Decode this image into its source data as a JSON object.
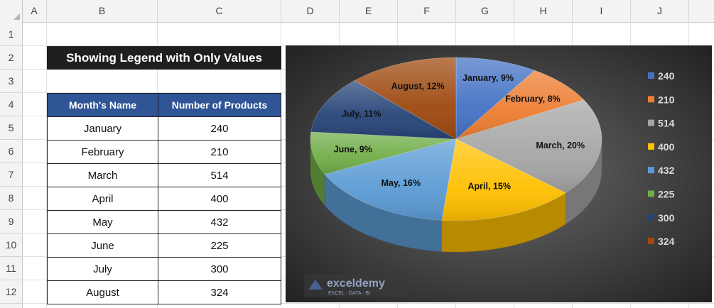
{
  "columns": [
    "A",
    "B",
    "C",
    "D",
    "E",
    "F",
    "G",
    "H",
    "I",
    "J"
  ],
  "rows": [
    "1",
    "2",
    "3",
    "4",
    "5",
    "6",
    "7",
    "8",
    "9",
    "10",
    "11",
    "12"
  ],
  "title": "Showing Legend with Only Values",
  "table": {
    "headers": [
      "Month's Name",
      "Number of Products"
    ],
    "rows": [
      {
        "month": "January",
        "value": "240"
      },
      {
        "month": "February",
        "value": "210"
      },
      {
        "month": "March",
        "value": "514"
      },
      {
        "month": "April",
        "value": "400"
      },
      {
        "month": "May",
        "value": "432"
      },
      {
        "month": "June",
        "value": "225"
      },
      {
        "month": "July",
        "value": "300"
      },
      {
        "month": "August",
        "value": "324"
      }
    ]
  },
  "chart_data": {
    "type": "pie",
    "style": "3d",
    "background": "#2d2d2d",
    "legend_position": "right",
    "slices": [
      {
        "category": "January",
        "value": 240,
        "label": "January, 9%",
        "legend": "240",
        "color": "#4472c4"
      },
      {
        "category": "February",
        "value": 210,
        "label": "February, 8%",
        "legend": "210",
        "color": "#ed7d31"
      },
      {
        "category": "March",
        "value": 514,
        "label": "March, 20%",
        "legend": "514",
        "color": "#a5a5a5"
      },
      {
        "category": "April",
        "value": 400,
        "label": "April, 15%",
        "legend": "400",
        "color": "#ffc000"
      },
      {
        "category": "May",
        "value": 432,
        "label": "May, 16%",
        "legend": "432",
        "color": "#5b9bd5"
      },
      {
        "category": "June",
        "value": 225,
        "label": "June, 9%",
        "legend": "225",
        "color": "#70ad47"
      },
      {
        "category": "July",
        "value": 300,
        "label": "July, 11%",
        "legend": "300",
        "color": "#264478"
      },
      {
        "category": "August",
        "value": 324,
        "label": "August, 12%",
        "legend": "324",
        "color": "#9e480e"
      }
    ]
  },
  "watermark": {
    "name": "exceldemy",
    "tagline": "EXCEL · DATA · BI"
  }
}
